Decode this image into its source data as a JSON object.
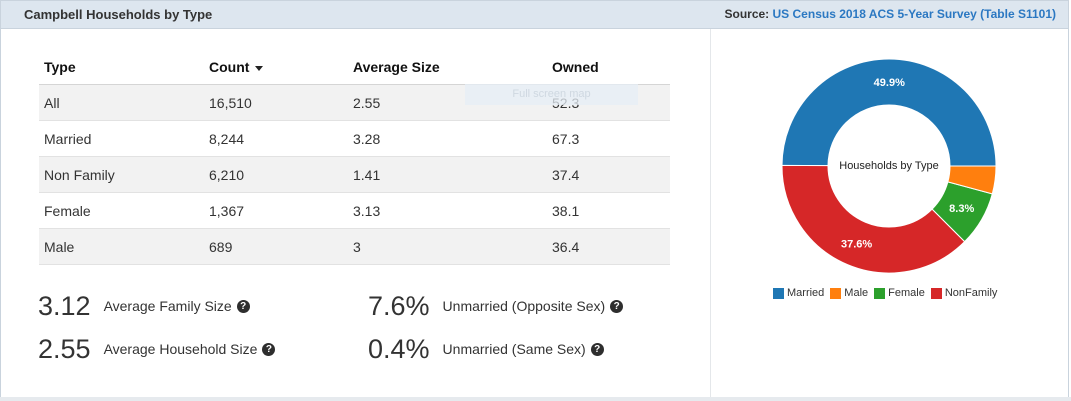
{
  "header": {
    "title": "Campbell Households by Type",
    "source_prefix": "Source:",
    "source_link": "US Census 2018 ACS 5-Year Survey (Table S1101)"
  },
  "table": {
    "columns": [
      "Type",
      "Count",
      "Average Size",
      "Owned"
    ],
    "sorted_column": "Count",
    "rows": [
      [
        "All",
        "16,510",
        "2.55",
        "52.3"
      ],
      [
        "Married",
        "8,244",
        "3.28",
        "67.3"
      ],
      [
        "Non Family",
        "6,210",
        "1.41",
        "37.4"
      ],
      [
        "Female",
        "1,367",
        "3.13",
        "38.1"
      ],
      [
        "Male",
        "689",
        "3",
        "36.4"
      ]
    ],
    "tooltip_ghost": "Full screen map"
  },
  "stats": [
    {
      "value": "3.12",
      "label": "Average Family Size"
    },
    {
      "value": "2.55",
      "label": "Average Household Size"
    },
    {
      "value": "7.6%",
      "label": "Unmarried (Opposite Sex)"
    },
    {
      "value": "0.4%",
      "label": "Unmarried (Same Sex)"
    }
  ],
  "help_icon": "question-circle-icon",
  "chart_data": {
    "type": "pie",
    "donut": true,
    "center_label": "Households by Type",
    "legend_position": "bottom",
    "slices": [
      {
        "name": "Married",
        "value": 49.9,
        "label": "49.9%",
        "color": "#1f77b4"
      },
      {
        "name": "NonFamily",
        "value": 37.6,
        "label": "37.6%",
        "color": "#d62728"
      },
      {
        "name": "Female",
        "value": 8.3,
        "label": "8.3%",
        "color": "#2ca02c"
      },
      {
        "name": "Male",
        "value": 4.2,
        "label": "",
        "color": "#ff7f0e"
      }
    ],
    "legend": [
      "Married",
      "Male",
      "Female",
      "NonFamily"
    ]
  }
}
